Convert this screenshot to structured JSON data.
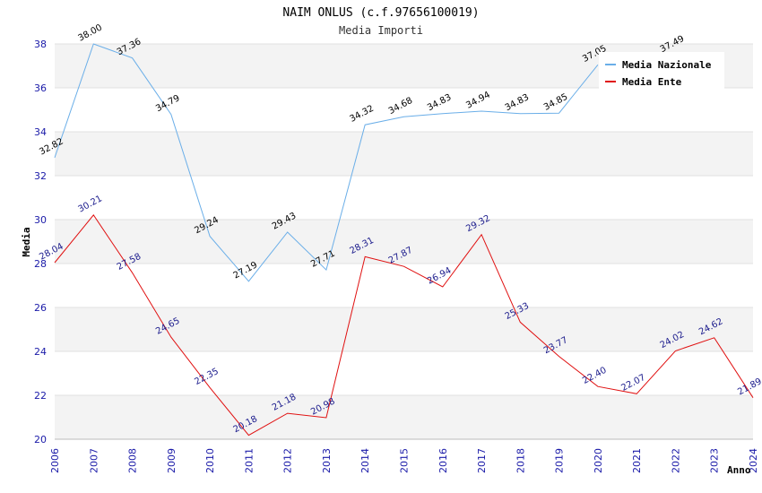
{
  "chart_data": {
    "type": "line",
    "title": "NAIM ONLUS (c.f.97656100019)",
    "subtitle": "Media Importi",
    "ylabel": "Media",
    "xlabel": "Anno",
    "ylim": [
      20,
      38
    ],
    "yticks": [
      20,
      22,
      24,
      26,
      28,
      30,
      32,
      34,
      36,
      38
    ],
    "x": [
      "2006",
      "2007",
      "2008",
      "2009",
      "2010",
      "2011",
      "2012",
      "2013",
      "2014",
      "2015",
      "2016",
      "2017",
      "2018",
      "2019",
      "2020",
      "2021",
      "2022",
      "2023",
      "2024"
    ],
    "grid": "horizontal bands",
    "legend_position": "top-right",
    "series": [
      {
        "name": "Media Nazionale",
        "color": "#6aaee8",
        "values": [
          32.82,
          38.0,
          37.36,
          34.79,
          29.24,
          27.19,
          29.43,
          27.71,
          34.32,
          34.68,
          34.83,
          34.94,
          34.83,
          34.85,
          37.05,
          null,
          37.49,
          null,
          null
        ],
        "labels": [
          "32.82",
          "38.00",
          "37.36",
          "34.79",
          "29.24",
          "27.19",
          "29.43",
          "27.71",
          "34.32",
          "34.68",
          "34.83",
          "34.94",
          "34.83",
          "34.85",
          "37.05",
          null,
          "37.49",
          null,
          null
        ]
      },
      {
        "name": "Media Ente",
        "color": "#e01010",
        "values": [
          28.04,
          30.21,
          27.58,
          24.65,
          22.35,
          20.18,
          21.18,
          20.98,
          28.31,
          27.87,
          26.94,
          29.32,
          25.33,
          23.77,
          22.4,
          22.07,
          24.02,
          24.62,
          21.89
        ],
        "labels": [
          "28.04",
          "30.21",
          "27.58",
          "24.65",
          "22.35",
          "20.18",
          "21.18",
          "20.98",
          "28.31",
          "27.87",
          "26.94",
          "29.32",
          "25.33",
          "23.77",
          "22.40",
          "22.07",
          "24.02",
          "24.62",
          "21.89"
        ]
      }
    ]
  }
}
